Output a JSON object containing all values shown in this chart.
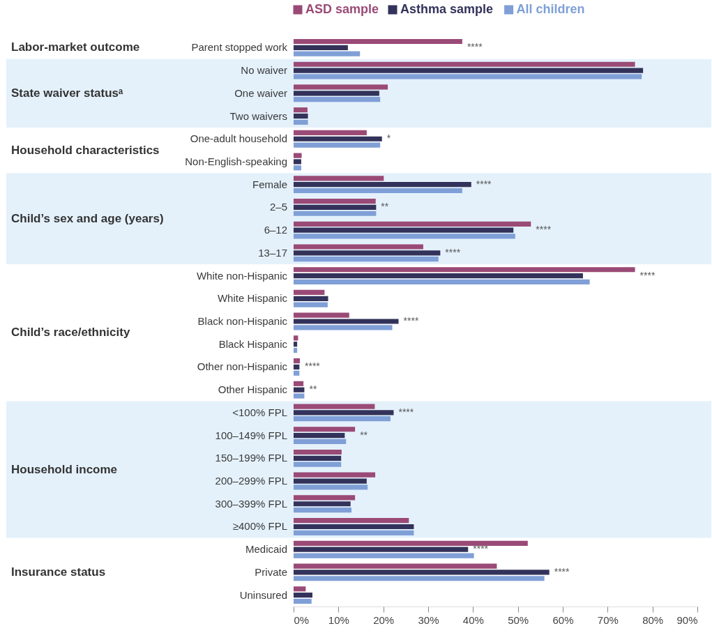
{
  "chart_data": {
    "type": "bar",
    "orientation": "horizontal",
    "legend": "top",
    "categories": [
      "Parent stopped work",
      "No waiver",
      "One waiver",
      "Two waivers",
      "One-adult household",
      "Non-English-speaking",
      "Female",
      "2–5",
      "6–12",
      "13–17",
      "White non-Hispanic",
      "White Hispanic",
      "Black non-Hispanic",
      "Black Hispanic",
      "Other non-Hispanic",
      "Other Hispanic",
      "<100% FPL",
      "100–149% FPL",
      "150–199% FPL",
      "200–299% FPL",
      "300–399% FPL",
      "≥400% FPL",
      "Medicaid",
      "Private",
      "Uninsured"
    ],
    "series": [
      {
        "name": "ASD sample",
        "color": "#9a4a76",
        "values": [
          37.6,
          76.1,
          21.0,
          3.1,
          16.3,
          1.8,
          20.1,
          18.3,
          52.9,
          28.9,
          76.1,
          6.9,
          12.4,
          1.0,
          1.4,
          2.2,
          18.1,
          13.7,
          10.7,
          18.2,
          13.7,
          25.7,
          52.2,
          45.3,
          2.7
        ]
      },
      {
        "name": "Asthma sample",
        "color": "#33325a",
        "values": [
          12.1,
          77.9,
          19.1,
          3.2,
          19.7,
          1.7,
          39.6,
          18.4,
          49.0,
          32.7,
          64.5,
          7.7,
          23.4,
          0.8,
          1.3,
          2.4,
          22.3,
          11.4,
          10.6,
          16.3,
          12.7,
          26.8,
          38.9,
          57.0,
          4.2
        ]
      },
      {
        "name": "All children",
        "color": "#7f9fd6",
        "values": [
          14.8,
          77.6,
          19.3,
          3.2,
          19.3,
          1.7,
          37.6,
          18.4,
          49.4,
          32.3,
          66.0,
          7.6,
          22.0,
          0.8,
          1.3,
          2.4,
          21.6,
          11.7,
          10.6,
          16.5,
          12.9,
          26.8,
          40.2,
          55.9,
          4.0
        ]
      }
    ],
    "xlim": [
      0,
      90
    ],
    "xticks": [
      {
        "value": 0,
        "label": "0%"
      },
      {
        "value": 10,
        "label": "10%"
      },
      {
        "value": 20,
        "label": "20%"
      },
      {
        "value": 30,
        "label": "30%"
      },
      {
        "value": 40,
        "label": "40%"
      },
      {
        "value": 50,
        "label": "50%"
      },
      {
        "value": 60,
        "label": "60%"
      },
      {
        "value": 70,
        "label": "70%"
      },
      {
        "value": 80,
        "label": "80%"
      },
      {
        "value": 90,
        "label": "90%"
      }
    ],
    "grid": false,
    "bands": [
      {
        "axis": "y",
        "from": "Parent stopped work",
        "to": "Parent stopped work",
        "label": "Labor-market outcome",
        "color": "#ffffff"
      },
      {
        "axis": "y",
        "from": "No waiver",
        "to": "Two waivers",
        "label": "State waiver statusᵃ",
        "color": "#e4f1fb"
      },
      {
        "axis": "y",
        "from": "One-adult household",
        "to": "Non-English-speaking",
        "label": "Household characteristics",
        "color": "#ffffff"
      },
      {
        "axis": "y",
        "from": "Female",
        "to": "13–17",
        "label": "Child’s sex and age (years)",
        "color": "#e4f1fb"
      },
      {
        "axis": "y",
        "from": "White non-Hispanic",
        "to": "Other Hispanic",
        "label": "Child’s race/ethnicity",
        "color": "#ffffff"
      },
      {
        "axis": "y",
        "from": "<100% FPL",
        "to": "≥400% FPL",
        "label": "Household income",
        "color": "#e4f1fb"
      },
      {
        "axis": "y",
        "from": "Medicaid",
        "to": "Uninsured",
        "label": "Insurance status",
        "color": "#ffffff"
      }
    ],
    "annotations": [
      {
        "text": "****",
        "x": 37.6,
        "y": "Parent stopped work"
      },
      {
        "text": "*",
        "x": 19.7,
        "y": "One-adult household"
      },
      {
        "text": "****",
        "x": 39.6,
        "y": "Female"
      },
      {
        "text": "**",
        "x": 18.4,
        "y": "2–5"
      },
      {
        "text": "****",
        "x": 52.9,
        "y": "6–12"
      },
      {
        "text": "****",
        "x": 32.7,
        "y": "13–17"
      },
      {
        "text": "****",
        "x": 76.1,
        "y": "White non-Hispanic"
      },
      {
        "text": "****",
        "x": 23.4,
        "y": "Black non-Hispanic"
      },
      {
        "text": "****",
        "x": 1.4,
        "y": "Other non-Hispanic"
      },
      {
        "text": "**",
        "x": 2.4,
        "y": "Other Hispanic"
      },
      {
        "text": "****",
        "x": 22.3,
        "y": "<100% FPL"
      },
      {
        "text": "**",
        "x": 13.7,
        "y": "100–149% FPL"
      },
      {
        "text": "****",
        "x": 38.9,
        "y": "Medicaid"
      },
      {
        "text": "****",
        "x": 57.0,
        "y": "Private"
      }
    ]
  }
}
